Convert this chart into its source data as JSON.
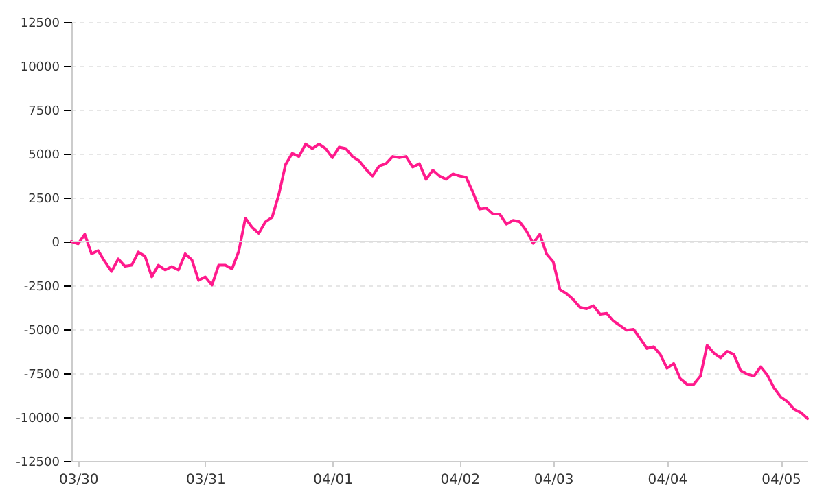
{
  "chart_data": {
    "type": "line",
    "grid": "y",
    "line_style": "solid",
    "marker": "none",
    "ylim": [
      -12500,
      12500
    ],
    "yticks": [
      -12500,
      -10000,
      -7500,
      -5000,
      -2500,
      0,
      2500,
      5000,
      7500,
      10000,
      12500
    ],
    "ref_lines": [
      {
        "axis": "y",
        "value": 0,
        "color": "#dddddd"
      }
    ],
    "categories": [
      null,
      "03/30",
      null,
      null,
      null,
      null,
      null,
      null,
      null,
      null,
      null,
      null,
      null,
      null,
      null,
      null,
      null,
      null,
      null,
      null,
      "03/31",
      null,
      null,
      null,
      null,
      null,
      null,
      null,
      null,
      null,
      null,
      null,
      null,
      null,
      null,
      null,
      null,
      null,
      null,
      "04/01",
      null,
      null,
      null,
      null,
      null,
      null,
      null,
      null,
      null,
      null,
      null,
      null,
      null,
      null,
      null,
      null,
      null,
      null,
      "04/02",
      null,
      null,
      null,
      null,
      null,
      null,
      null,
      null,
      null,
      null,
      null,
      null,
      null,
      "04/03",
      null,
      null,
      null,
      null,
      null,
      null,
      null,
      null,
      null,
      null,
      null,
      null,
      null,
      null,
      null,
      null,
      "04/04",
      null,
      null,
      null,
      null,
      null,
      null,
      null,
      null,
      null,
      null,
      null,
      null,
      null,
      null,
      null,
      null,
      "04/05",
      null,
      null,
      null,
      null
    ],
    "series": [
      {
        "color": "#ff1a8c",
        "values": [
          0,
          -130,
          410,
          -700,
          -520,
          -1150,
          -1700,
          -990,
          -1410,
          -1350,
          -600,
          -840,
          -2010,
          -1350,
          -1620,
          -1430,
          -1620,
          -700,
          -1040,
          -2210,
          -2010,
          -2480,
          -1350,
          -1350,
          -1560,
          -570,
          1330,
          800,
          470,
          1120,
          1380,
          2680,
          4380,
          5020,
          4840,
          5550,
          5290,
          5550,
          5290,
          4770,
          5370,
          5290,
          4840,
          4590,
          4120,
          3730,
          4300,
          4430,
          4840,
          4770,
          4840,
          4240,
          4430,
          3540,
          4060,
          3730,
          3540,
          3850,
          3730,
          3650,
          2810,
          1850,
          1900,
          1560,
          1560,
          990,
          1200,
          1120,
          600,
          -100,
          410,
          -700,
          -1150,
          -2730,
          -2970,
          -3300,
          -3750,
          -3830,
          -3650,
          -4140,
          -4090,
          -4530,
          -4790,
          -5050,
          -5000,
          -5520,
          -6090,
          -5990,
          -6430,
          -7210,
          -6950,
          -7810,
          -8130,
          -8130,
          -7660,
          -5910,
          -6350,
          -6620,
          -6250,
          -6430,
          -7340,
          -7550,
          -7660,
          -7130,
          -7600,
          -8340,
          -8850,
          -9120,
          -9550,
          -9740,
          -10080
        ]
      }
    ]
  }
}
